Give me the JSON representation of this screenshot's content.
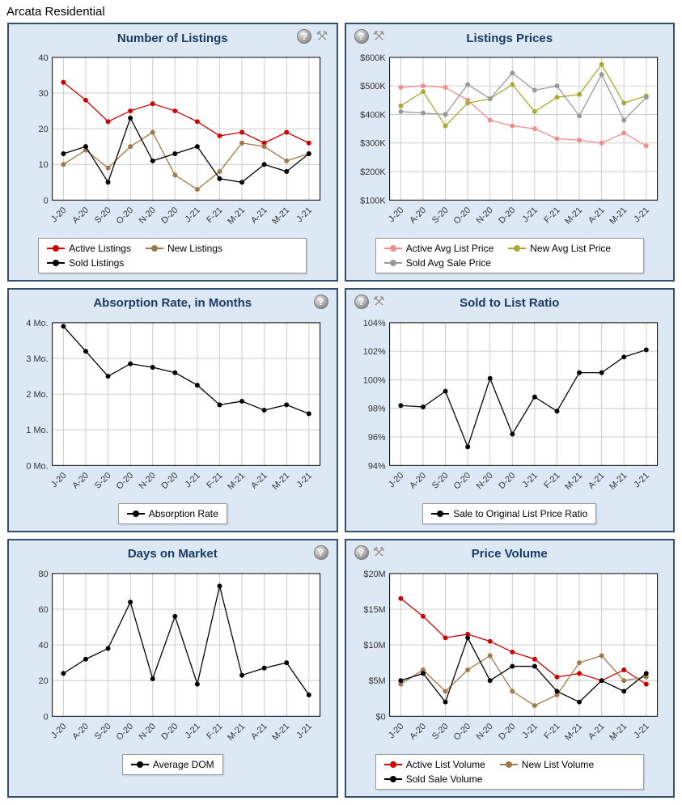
{
  "page_title": "Arcata Residential",
  "months": [
    "J-20",
    "A-20",
    "S-20",
    "O-20",
    "N-20",
    "D-20",
    "J-21",
    "F-21",
    "M-21",
    "A-21",
    "M-21",
    "J-21"
  ],
  "colors": {
    "panel_background": "#dce9f5",
    "panel_border": "#33516b",
    "title_text": "#173a5e",
    "gridline": "#cccccc"
  },
  "chart_data": [
    {
      "type": "line",
      "title": "Number of Listings",
      "icons": [
        "help",
        "tools"
      ],
      "ylim": [
        0,
        40
      ],
      "yticks": [
        0,
        10,
        20,
        30,
        40
      ],
      "ytick_labels": [
        "0",
        "10",
        "20",
        "30",
        "40"
      ],
      "series": [
        {
          "name": "Active Listings",
          "color": "#cc0000",
          "values": [
            33,
            28,
            22,
            25,
            27,
            25,
            22,
            18,
            19,
            16,
            19,
            16
          ]
        },
        {
          "name": "New Listings",
          "color": "#a0784a",
          "values": [
            10,
            14,
            9,
            15,
            19,
            7,
            3,
            8,
            16,
            15,
            11,
            13
          ]
        },
        {
          "name": "Sold Listings",
          "color": "#000000",
          "values": [
            13,
            15,
            5,
            23,
            11,
            13,
            15,
            6,
            5,
            10,
            8,
            13
          ]
        }
      ]
    },
    {
      "type": "line",
      "title": "Listings Prices",
      "icons": [
        "help",
        "tools"
      ],
      "ylim": [
        100,
        600
      ],
      "yticks": [
        100,
        200,
        300,
        400,
        500,
        600
      ],
      "ytick_labels": [
        "$100K",
        "$200K",
        "$300K",
        "$400K",
        "$500K",
        "$600K"
      ],
      "series": [
        {
          "name": "Active Avg List Price",
          "color": "#f08e8e",
          "values": [
            495,
            500,
            495,
            450,
            380,
            360,
            350,
            315,
            310,
            300,
            335,
            290
          ]
        },
        {
          "name": "New Avg List Price",
          "color": "#a8aa33",
          "values": [
            430,
            480,
            360,
            440,
            455,
            505,
            410,
            460,
            470,
            575,
            440,
            465
          ]
        },
        {
          "name": "Sold Avg Sale Price",
          "color": "#999999",
          "values": [
            410,
            405,
            400,
            505,
            455,
            545,
            485,
            500,
            395,
            540,
            380,
            460
          ]
        }
      ]
    },
    {
      "type": "line",
      "title": "Absorption Rate, in Months",
      "icons": [
        "help"
      ],
      "ylim": [
        0,
        4
      ],
      "yticks": [
        0,
        1,
        2,
        3,
        4
      ],
      "ytick_labels": [
        "0 Mo.",
        "1 Mo.",
        "2 Mo.",
        "3 Mo.",
        "4 Mo."
      ],
      "series": [
        {
          "name": "Absorption Rate",
          "color": "#000000",
          "values": [
            3.9,
            3.2,
            2.5,
            2.85,
            2.75,
            2.6,
            2.25,
            1.7,
            1.8,
            1.55,
            1.7,
            1.45
          ]
        }
      ]
    },
    {
      "type": "line",
      "title": "Sold to List Ratio",
      "icons": [
        "help",
        "tools"
      ],
      "ylim": [
        94,
        104
      ],
      "yticks": [
        94,
        96,
        98,
        100,
        102,
        104
      ],
      "ytick_labels": [
        "94%",
        "96%",
        "98%",
        "100%",
        "102%",
        "104%"
      ],
      "series": [
        {
          "name": "Sale to Original List Price Ratio",
          "color": "#000000",
          "values": [
            98.2,
            98.1,
            99.2,
            95.3,
            100.1,
            96.2,
            98.8,
            97.8,
            100.5,
            100.5,
            101.6,
            102.1
          ]
        }
      ]
    },
    {
      "type": "line",
      "title": "Days on Market",
      "icons": [
        "help"
      ],
      "ylim": [
        0,
        80
      ],
      "yticks": [
        0,
        20,
        40,
        60,
        80
      ],
      "ytick_labels": [
        "0",
        "20",
        "40",
        "60",
        "80"
      ],
      "series": [
        {
          "name": "Average DOM",
          "color": "#000000",
          "values": [
            24,
            32,
            38,
            64,
            21,
            56,
            18,
            73,
            23,
            27,
            30,
            12
          ]
        }
      ]
    },
    {
      "type": "line",
      "title": "Price Volume",
      "icons": [
        "help",
        "tools"
      ],
      "ylim": [
        0,
        20
      ],
      "yticks": [
        0,
        5,
        10,
        15,
        20
      ],
      "ytick_labels": [
        "$0",
        "$5M",
        "$10M",
        "$15M",
        "$20M"
      ],
      "series": [
        {
          "name": "Active List Volume",
          "color": "#cc0000",
          "values": [
            16.5,
            14,
            11,
            11.5,
            10.5,
            9,
            8,
            5.5,
            6,
            5,
            6.5,
            4.5
          ]
        },
        {
          "name": "New List Volume",
          "color": "#a0784a",
          "values": [
            4.5,
            6.5,
            3.5,
            6.5,
            8.5,
            3.5,
            1.5,
            3,
            7.5,
            8.5,
            5,
            5.5
          ]
        },
        {
          "name": "Sold Sale Volume",
          "color": "#000000",
          "values": [
            5,
            6,
            2,
            11,
            5,
            7,
            7,
            3.5,
            2,
            5,
            3.5,
            6
          ]
        }
      ]
    }
  ]
}
